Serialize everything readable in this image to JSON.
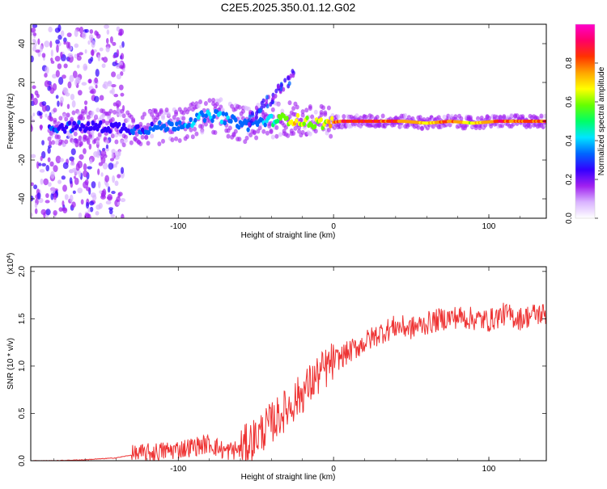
{
  "title": "C2E5.2025.350.01.12.G02",
  "chart_data": [
    {
      "type": "heatmap",
      "xlabel": "Height of straight line (km)",
      "ylabel": "Frequency (Hz)",
      "xlim": [
        -195,
        137
      ],
      "ylim": [
        -50,
        50
      ],
      "xticks": [
        -100,
        0,
        100
      ],
      "yticks": [
        -40,
        -20,
        0,
        20,
        40
      ],
      "colorbar": {
        "label": "Normalized spectral amplitude",
        "range": [
          0,
          1
        ],
        "ticks": [
          "0.0",
          "0.2",
          "0.4",
          "0.6",
          "0.8"
        ],
        "colors": [
          "#ffffff",
          "#d9b3ff",
          "#a020f0",
          "#3300ff",
          "#0066ff",
          "#00e5ff",
          "#00ff66",
          "#66ff00",
          "#ffff00",
          "#ffa500",
          "#ff3300",
          "#ff0066",
          "#ff00cc"
        ]
      },
      "ridge": {
        "x": [
          -185,
          -170,
          -155,
          -140,
          -125,
          -110,
          -95,
          -85,
          -75,
          -65,
          -55,
          -45,
          -35,
          -25,
          -15,
          -5,
          5,
          15,
          30,
          45,
          60,
          75,
          90,
          105,
          120,
          135
        ],
        "y": [
          -3,
          -3,
          -3,
          -3,
          -4,
          -3,
          -1,
          2,
          3,
          0,
          -2,
          0,
          1,
          1,
          -1,
          -1,
          0,
          0,
          0,
          0,
          -1,
          0,
          -1,
          0,
          0,
          0
        ],
        "amplitude": [
          0.3,
          0.3,
          0.3,
          0.28,
          0.32,
          0.35,
          0.38,
          0.4,
          0.42,
          0.38,
          0.35,
          0.4,
          0.55,
          0.75,
          0.6,
          0.7,
          0.9,
          0.95,
          0.92,
          0.85,
          0.75,
          0.85,
          0.7,
          0.9,
          0.85,
          0.9
        ]
      }
    },
    {
      "type": "line",
      "xlabel": "Height of straight line (km)",
      "ylabel": "SNR (10 * v/v)",
      "yscale_label": "(x10^4)",
      "xlim": [
        -195,
        137
      ],
      "ylim": [
        0,
        2.05
      ],
      "xticks": [
        -100,
        0,
        100
      ],
      "yticks": [
        "0.0",
        "0.5",
        "1.0",
        "1.5",
        "2.0"
      ],
      "ytick_values": [
        0,
        0.5,
        1.0,
        1.5,
        2.0
      ],
      "series_color": "#ee3333",
      "x": [
        -195,
        -180,
        -160,
        -140,
        -130,
        -120,
        -110,
        -100,
        -90,
        -80,
        -70,
        -60,
        -50,
        -40,
        -30,
        -20,
        -10,
        0,
        10,
        20,
        30,
        40,
        50,
        60,
        70,
        80,
        90,
        100,
        110,
        120,
        130,
        137
      ],
      "y": [
        0.0,
        0.0,
        0.01,
        0.03,
        0.06,
        0.08,
        0.1,
        0.12,
        0.15,
        0.18,
        0.1,
        0.12,
        0.25,
        0.4,
        0.55,
        0.72,
        0.9,
        1.05,
        1.15,
        1.25,
        1.35,
        1.42,
        1.4,
        1.45,
        1.5,
        1.52,
        1.5,
        1.48,
        1.55,
        1.5,
        1.55,
        1.55
      ]
    }
  ]
}
